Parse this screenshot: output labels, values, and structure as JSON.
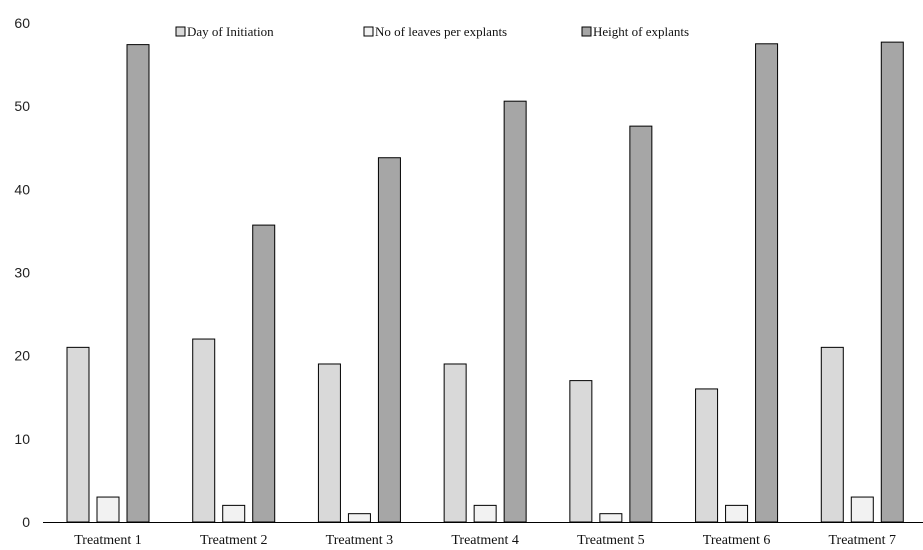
{
  "chart_data": {
    "type": "bar",
    "title": "",
    "xlabel": "",
    "ylabel": "",
    "ylim": [
      0,
      60
    ],
    "yticks": [
      0,
      10,
      20,
      30,
      40,
      50,
      60
    ],
    "grid": false,
    "legend_position": "top",
    "categories": [
      "Treatment 1",
      "Treatment 2",
      "Treatment 3",
      "Treatment 4",
      "Treatment 5",
      "Treatment 6",
      "Treatment 7"
    ],
    "series": [
      {
        "name": "Day of Initiation",
        "color": "#d9d9d9",
        "values": [
          21,
          22,
          19,
          19,
          17,
          16,
          21
        ]
      },
      {
        "name": "No of leaves per explants",
        "color": "#f2f2f2",
        "values": [
          3,
          2,
          1,
          2,
          1,
          2,
          3
        ]
      },
      {
        "name": "Height of explants",
        "color": "#a6a6a6",
        "values": [
          57.4,
          35.7,
          43.8,
          50.6,
          47.6,
          57.5,
          57.7
        ]
      }
    ]
  }
}
